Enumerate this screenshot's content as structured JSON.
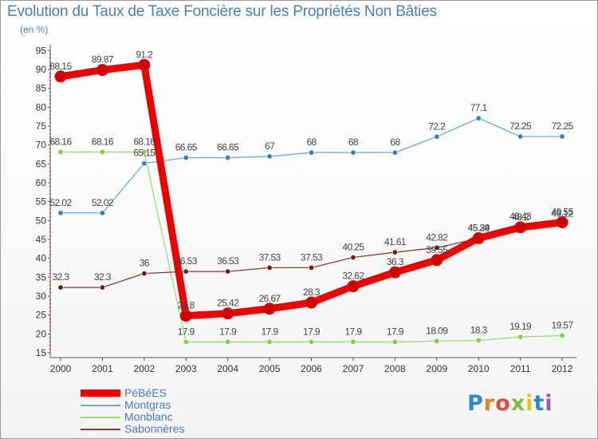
{
  "title": "Evolution du Taux de Taxe Foncière sur les Propriétés Non Bâties",
  "unit_label": "(en %)",
  "logo": {
    "text": "Proxiti",
    "colors": [
      "#2e86d0",
      "#e87d1e",
      "#e84a3c",
      "#7bbd3a",
      "#e8c41e",
      "#2e86d0",
      "#9b59b6"
    ]
  },
  "chart_data": {
    "type": "line",
    "title": "Evolution du Taux de Taxe Foncière sur les Propriétés Non Bâties",
    "ylabel": "(en %)",
    "xlabel": "",
    "x": [
      "2000",
      "2001",
      "2002",
      "2003",
      "2004",
      "2005",
      "2006",
      "2007",
      "2008",
      "2009",
      "2010",
      "2011",
      "2012"
    ],
    "ylim": [
      15,
      95
    ],
    "yticks": [
      15,
      20,
      25,
      30,
      35,
      40,
      45,
      50,
      55,
      60,
      65,
      70,
      75,
      80,
      85,
      90,
      95
    ],
    "grid": false,
    "legend_position": "bottom-left",
    "series": [
      {
        "name": "PéBéES",
        "color": "#ee0000",
        "marker": "#cc0000",
        "labels": [
          "88.15",
          "89.87",
          "91.2",
          "24.8",
          "25.42",
          "26.67",
          "28.3",
          "32.62",
          "36.3",
          "39.55",
          "45.34",
          "48.2",
          "49.55"
        ],
        "values": [
          88.15,
          89.87,
          91.2,
          24.8,
          25.42,
          26.67,
          28.3,
          32.62,
          36.3,
          39.55,
          45.34,
          48.2,
          49.55
        ]
      },
      {
        "name": "Montgras",
        "color": "#6ea8d8",
        "marker": "#3b7fc0",
        "labels": [
          "52.02",
          "52.02",
          "65.15",
          "66.65",
          "66.65",
          "67",
          "68",
          "68",
          "68",
          "72.2",
          "77.1",
          "72.25",
          "72.25"
        ],
        "values": [
          52.02,
          52.02,
          65.15,
          66.65,
          66.65,
          67,
          68,
          68,
          68,
          72.2,
          77.1,
          72.25,
          72.25
        ]
      },
      {
        "name": "Monblanc",
        "color": "#99dd77",
        "marker": "#88cc44",
        "labels": [
          "68.16",
          "68.16",
          "68.16",
          "17.9",
          "17.9",
          "17.9",
          "17.9",
          "17.9",
          "17.9",
          "18.09",
          "18.3",
          "19.19",
          "19.57"
        ],
        "values": [
          68.16,
          68.16,
          68.16,
          17.9,
          17.9,
          17.9,
          17.9,
          17.9,
          17.9,
          18.09,
          18.3,
          19.19,
          19.57
        ]
      },
      {
        "name": "Sabonnères",
        "color": "#8a3a3a",
        "marker": "#6b1f1f",
        "labels": [
          "32.3",
          "32.3",
          "36",
          "36.53",
          "36.53",
          "37.53",
          "37.53",
          "40.25",
          "41.61",
          "42.82",
          "45.29",
          "48.43",
          "49.12"
        ],
        "values": [
          32.3,
          32.3,
          36,
          36.53,
          36.53,
          37.53,
          37.53,
          40.25,
          41.61,
          42.82,
          45.29,
          48.43,
          49.12
        ]
      }
    ]
  }
}
